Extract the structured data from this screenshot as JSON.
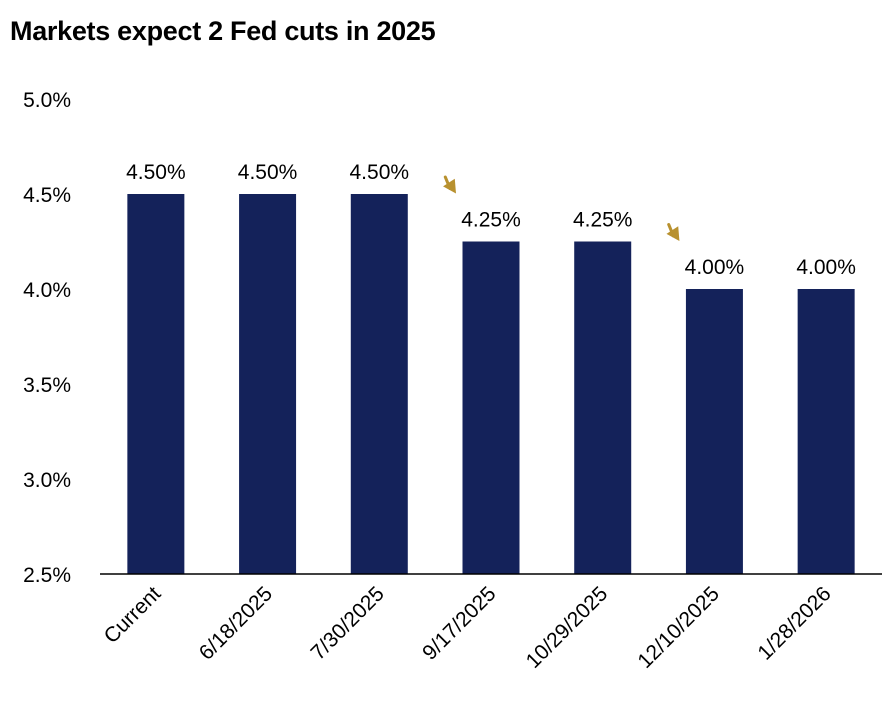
{
  "chart_data": {
    "type": "bar",
    "title": "Markets expect 2 Fed cuts in 2025",
    "xlabel": "",
    "ylabel": "",
    "categories": [
      "Current",
      "6/18/2025",
      "7/30/2025",
      "9/17/2025",
      "10/29/2025",
      "12/10/2025",
      "1/28/2026"
    ],
    "values": [
      4.5,
      4.5,
      4.5,
      4.25,
      4.25,
      4.0,
      4.0
    ],
    "data_labels": [
      "4.50%",
      "4.50%",
      "4.50%",
      "4.25%",
      "4.25%",
      "4.00%",
      "4.00%"
    ],
    "ylim": [
      2.5,
      5.0
    ],
    "yticks": [
      2.5,
      3.0,
      3.5,
      4.0,
      4.5,
      5.0
    ],
    "ytick_labels": [
      "2.5%",
      "3.0%",
      "3.5%",
      "4.0%",
      "4.5%",
      "5.0%"
    ],
    "grid": false,
    "legend": "none",
    "annotations": [
      {
        "type": "arrow",
        "from_category": "7/30/2025",
        "to_category": "9/17/2025"
      },
      {
        "type": "arrow",
        "from_category": "10/29/2025",
        "to_category": "12/10/2025"
      }
    ],
    "colors": {
      "bar": "#14225a",
      "arrow": "#b8912f",
      "axis": "#000000"
    }
  }
}
